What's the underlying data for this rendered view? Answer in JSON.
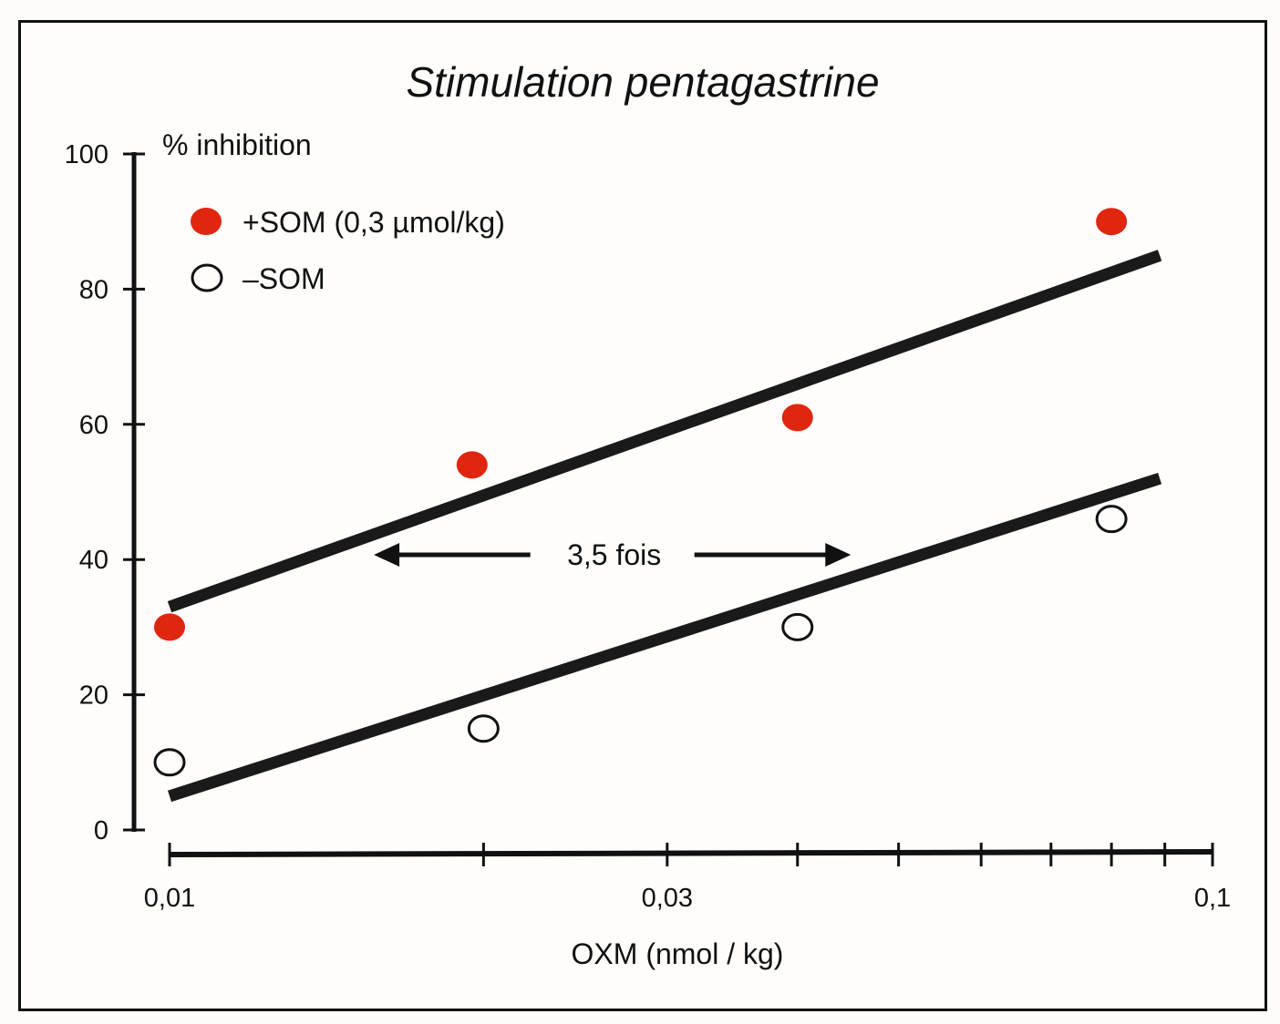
{
  "chart_data": {
    "type": "scatter",
    "title": "Stimulation pentagastrine",
    "xlabel": "OXM (nmol / kg)",
    "ylabel": "% inhibition",
    "xscale": "log",
    "xlim": [
      0.01,
      0.1
    ],
    "ylim": [
      0,
      100
    ],
    "x_ticks": [
      0.01,
      0.02,
      0.03,
      0.04,
      0.05,
      0.06,
      0.07,
      0.08,
      0.09,
      0.1
    ],
    "x_tick_labels": [
      {
        "value": 0.01,
        "label": "0,01"
      },
      {
        "value": 0.03,
        "label": "0,03"
      },
      {
        "value": 0.1,
        "label": "0,1"
      }
    ],
    "y_ticks": [
      0,
      20,
      40,
      60,
      80,
      100
    ],
    "y_tick_labels": [
      "0",
      "20",
      "40",
      "60",
      "80",
      "100"
    ],
    "grid": false,
    "legend_position": "top-left",
    "series": [
      {
        "name": "+SOM (0,3 µmol/kg)",
        "marker": "filled-circle",
        "color": "#e0260f",
        "points": [
          {
            "x": 0.01,
            "y": 30
          },
          {
            "x": 0.0195,
            "y": 54
          },
          {
            "x": 0.04,
            "y": 61
          },
          {
            "x": 0.08,
            "y": 90
          }
        ],
        "fit_line": {
          "x": [
            0.01,
            0.089
          ],
          "y": [
            33,
            85
          ]
        }
      },
      {
        "name": "–SOM",
        "marker": "open-circle",
        "color": "#111111",
        "points": [
          {
            "x": 0.01,
            "y": 10
          },
          {
            "x": 0.02,
            "y": 15
          },
          {
            "x": 0.04,
            "y": 30
          },
          {
            "x": 0.08,
            "y": 46
          }
        ],
        "fit_line": {
          "x": [
            0.01,
            0.089
          ],
          "y": [
            5,
            52
          ]
        }
      }
    ],
    "annotations": [
      {
        "text": "3,5 fois",
        "type": "double-arrow",
        "x_from": 0.0157,
        "x_to": 0.045,
        "y": 40
      }
    ]
  }
}
